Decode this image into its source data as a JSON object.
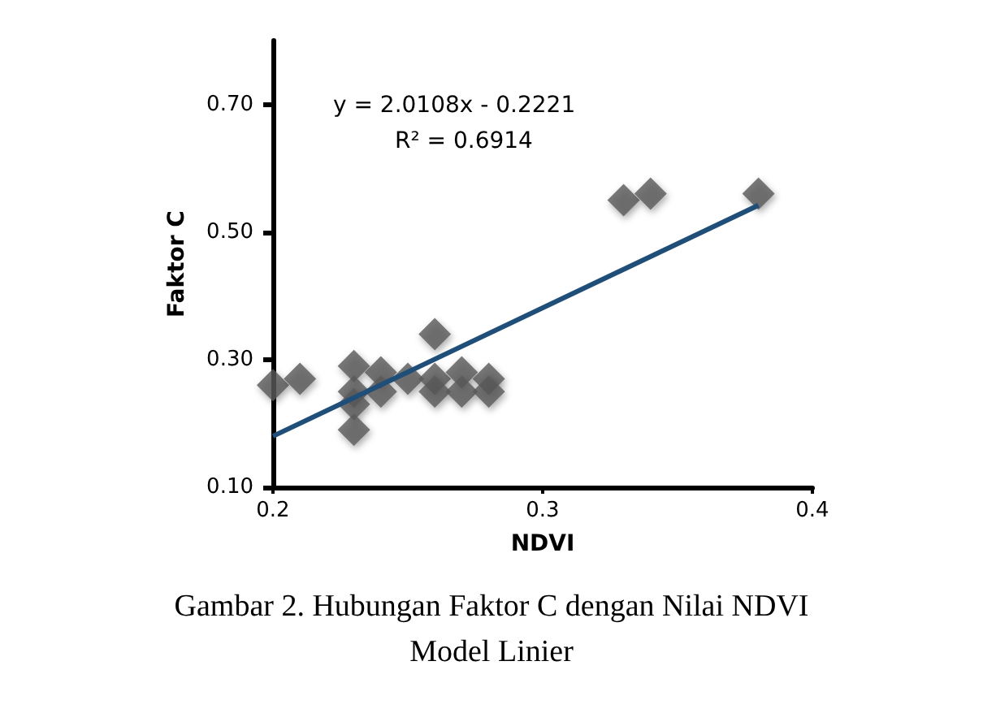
{
  "chart_data": {
    "type": "scatter",
    "xlabel": "NDVI",
    "ylabel": "Faktor C",
    "xlim": [
      0.2,
      0.4
    ],
    "xticks": [
      0.2,
      0.3,
      0.4
    ],
    "ylim": [
      0.1,
      0.8
    ],
    "yticks": [
      {
        "value": 0.1,
        "label": "0.10"
      },
      {
        "value": 0.3,
        "label": "0.30"
      },
      {
        "value": 0.5,
        "label": "0.50"
      },
      {
        "value": 0.7,
        "label": "0.70"
      }
    ],
    "grid": false,
    "marker": "diamond",
    "series": [
      {
        "color": "#595959",
        "x": [
          0.2,
          0.21,
          0.23,
          0.23,
          0.23,
          0.23,
          0.24,
          0.24,
          0.25,
          0.26,
          0.26,
          0.26,
          0.27,
          0.27,
          0.28,
          0.28,
          0.33,
          0.34,
          0.38
        ],
        "values": [
          0.26,
          0.27,
          0.29,
          0.25,
          0.23,
          0.19,
          0.28,
          0.25,
          0.27,
          0.34,
          0.27,
          0.25,
          0.28,
          0.25,
          0.27,
          0.25,
          0.55,
          0.56,
          0.56
        ]
      },
      {
        "type": "line",
        "marker": "none",
        "color": "#1f4e79",
        "x": [
          0.2,
          0.38
        ],
        "values": [
          0.18,
          0.542
        ]
      }
    ],
    "annotations": [
      "y = 2.0108x - 0.2221",
      "R² = 0.6914",
      "Gambar 2. Hubungan Faktor C dengan Nilai NDVI",
      "Model Linier"
    ]
  }
}
